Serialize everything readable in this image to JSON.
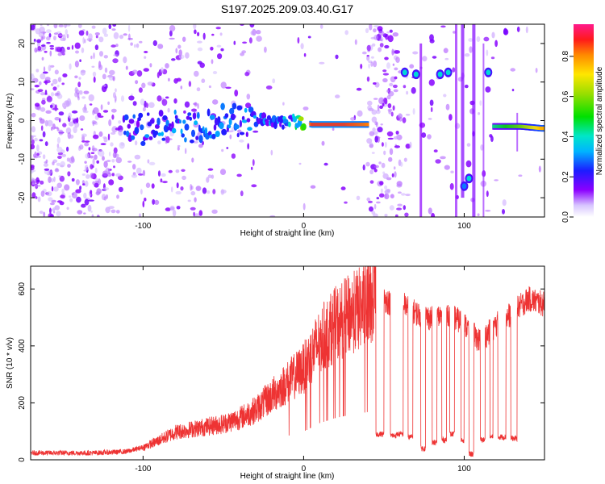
{
  "title": "S197.2025.209.03.40.G17",
  "colorbar": {
    "label": "Normalized spectral amplitude",
    "ticks": [
      "0.0",
      "0.2",
      "0.4",
      "0.6",
      "0.8"
    ],
    "tick_values": [
      0.0,
      0.2,
      0.4,
      0.6,
      0.8
    ],
    "range": [
      0,
      0.96
    ],
    "colormap": "rainbow-magenta"
  },
  "chart_data": [
    {
      "type": "heatmap",
      "xlabel": "Height of straight line (km)",
      "ylabel": "Frequency (Hz)",
      "xlim": [
        -170,
        150
      ],
      "ylim": [
        -25,
        25
      ],
      "xticks": [
        -100,
        0,
        100
      ],
      "xtick_labels": [
        "-100",
        "0",
        "100"
      ],
      "yticks": [
        -20,
        -10,
        0,
        10,
        20
      ],
      "ytick_labels": [
        "-20",
        "-10",
        "0",
        "10",
        "20"
      ],
      "ridge": [
        {
          "x": -110,
          "y": -2.5,
          "amp": 0.25
        },
        {
          "x": -90,
          "y": -2.0,
          "amp": 0.3
        },
        {
          "x": -70,
          "y": -1.5,
          "amp": 0.3
        },
        {
          "x": -50,
          "y": 0.0,
          "amp": 0.35
        },
        {
          "x": -30,
          "y": 0.5,
          "amp": 0.3
        },
        {
          "x": -15,
          "y": -1.0,
          "amp": 0.3
        },
        {
          "x": -5,
          "y": 0.0,
          "amp": 0.4
        },
        {
          "x": 5,
          "y": -1.0,
          "amp": 0.9
        },
        {
          "x": 25,
          "y": -1.0,
          "amp": 0.9
        },
        {
          "x": 40,
          "y": -1.0,
          "amp": 0.85
        },
        {
          "x": 118,
          "y": -1.5,
          "amp": 0.45
        },
        {
          "x": 135,
          "y": -1.5,
          "amp": 0.6
        },
        {
          "x": 148,
          "y": -2.0,
          "amp": 0.8
        }
      ],
      "blobs": [
        {
          "x": 63,
          "y": 12.5,
          "amp": 0.3
        },
        {
          "x": 70,
          "y": 12.0,
          "amp": 0.3
        },
        {
          "x": 85,
          "y": 12.0,
          "amp": 0.3
        },
        {
          "x": 90,
          "y": 12.5,
          "amp": 0.3
        },
        {
          "x": 103,
          "y": -15.0,
          "amp": 0.3
        },
        {
          "x": 100,
          "y": -17.0,
          "amp": 0.2
        },
        {
          "x": 115,
          "y": 12.5,
          "amp": 0.3
        }
      ]
    },
    {
      "type": "line",
      "xlabel": "Height of straight line (km)",
      "ylabel": "SNR (10 * v/v)",
      "xlim": [
        -170,
        150
      ],
      "ylim": [
        0,
        680
      ],
      "xticks": [
        -100,
        0,
        100
      ],
      "xtick_labels": [
        "-100",
        "0",
        "100"
      ],
      "yticks": [
        0,
        200,
        400,
        600
      ],
      "ytick_labels": [
        "0",
        "200",
        "400",
        "600"
      ],
      "series": [
        {
          "color": "#ee3333",
          "x": [
            -170,
            -150,
            -130,
            -110,
            -100,
            -90,
            -80,
            -70,
            -60,
            -50,
            -40,
            -30,
            -20,
            -10,
            0,
            5,
            10,
            20,
            30,
            40,
            45,
            50,
            55,
            60,
            70,
            80,
            90,
            100,
            110,
            120,
            130,
            140,
            150
          ],
          "y": [
            25,
            25,
            25,
            30,
            45,
            70,
            100,
            110,
            120,
            130,
            150,
            180,
            230,
            280,
            330,
            380,
            430,
            490,
            530,
            560,
            580,
            570,
            550,
            560,
            520,
            500,
            520,
            480,
            420,
            480,
            520,
            570,
            550
          ]
        }
      ],
      "dropouts": [
        {
          "x_start": 45,
          "x_end": 50,
          "y": 90
        },
        {
          "x_start": 54,
          "x_end": 58,
          "y": 85
        },
        {
          "x_start": 58,
          "x_end": 62,
          "y": 90
        },
        {
          "x_start": 65,
          "x_end": 68,
          "y": 80
        },
        {
          "x_start": 73,
          "x_end": 76,
          "y": 40
        },
        {
          "x_start": 80,
          "x_end": 83,
          "y": 60
        },
        {
          "x_start": 86,
          "x_end": 89,
          "y": 70
        },
        {
          "x_start": 91,
          "x_end": 94,
          "y": 90
        },
        {
          "x_start": 98,
          "x_end": 100,
          "y": 70
        },
        {
          "x_start": 103,
          "x_end": 106,
          "y": 20
        },
        {
          "x_start": 110,
          "x_end": 113,
          "y": 70
        },
        {
          "x_start": 116,
          "x_end": 118,
          "y": 80
        },
        {
          "x_start": 121,
          "x_end": 126,
          "y": 80
        },
        {
          "x_start": 129,
          "x_end": 133,
          "y": 75
        }
      ]
    }
  ]
}
